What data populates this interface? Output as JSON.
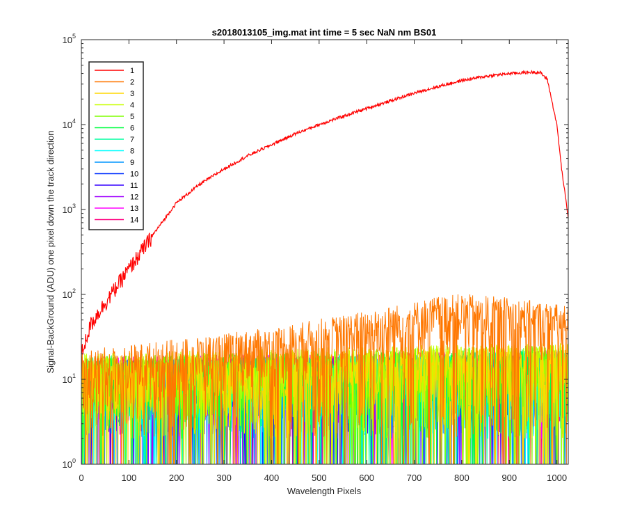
{
  "chart_data": {
    "type": "line",
    "title": "s2018013105_img.mat int time = 5 sec  NaN nm BS01",
    "xlabel": "Wavelength Pixels",
    "ylabel": "Signal-BackGround (ADU) one pixel down the track direction",
    "xlim": [
      0,
      1024
    ],
    "ylim": [
      1,
      100000
    ],
    "yscale": "log",
    "grid": false,
    "legend_position": "top-left",
    "x_ticks": [
      "0",
      "100",
      "200",
      "300",
      "400",
      "500",
      "600",
      "700",
      "800",
      "900",
      "1000"
    ],
    "x_tick_values": [
      0,
      100,
      200,
      300,
      400,
      500,
      600,
      700,
      800,
      900,
      1000
    ],
    "y_ticks": [
      {
        "base": "10",
        "exp": "0",
        "value": 1
      },
      {
        "base": "10",
        "exp": "1",
        "value": 10
      },
      {
        "base": "10",
        "exp": "2",
        "value": 100
      },
      {
        "base": "10",
        "exp": "3",
        "value": 1000
      },
      {
        "base": "10",
        "exp": "4",
        "value": 10000
      },
      {
        "base": "10",
        "exp": "5",
        "value": 100000
      }
    ],
    "series": [
      {
        "name": "1",
        "color": "#ff0000",
        "profile": "signal",
        "x": [
          0,
          10,
          20,
          30,
          50,
          100,
          150,
          200,
          250,
          300,
          350,
          400,
          450,
          500,
          550,
          600,
          650,
          700,
          750,
          800,
          850,
          900,
          950,
          965,
          980,
          1000,
          1010,
          1024
        ],
        "y": [
          20,
          30,
          45,
          55,
          80,
          200,
          500,
          1200,
          2000,
          3000,
          4300,
          5800,
          7800,
          10000,
          12500,
          15500,
          19000,
          23500,
          28000,
          33000,
          37000,
          40000,
          41500,
          41000,
          34000,
          10000,
          3000,
          800
        ]
      },
      {
        "name": "2",
        "color": "#ff7700",
        "profile": "noise",
        "x": [
          0,
          200,
          400,
          500,
          600,
          700,
          750,
          800,
          900,
          1000,
          1024
        ],
        "y": [
          12,
          16,
          22,
          28,
          35,
          45,
          52,
          55,
          50,
          42,
          40
        ]
      },
      {
        "name": "3",
        "color": "#ffd700",
        "profile": "noise",
        "x": [
          0,
          1024
        ],
        "y": [
          10,
          14
        ]
      },
      {
        "name": "4",
        "color": "#c8ff00",
        "profile": "noise",
        "x": [
          0,
          1024
        ],
        "y": [
          11,
          15
        ]
      },
      {
        "name": "5",
        "color": "#7fff00",
        "profile": "noise",
        "x": [
          0,
          1024
        ],
        "y": [
          10,
          14
        ]
      },
      {
        "name": "6",
        "color": "#00ff40",
        "profile": "noise",
        "x": [
          0,
          1024
        ],
        "y": [
          10,
          13
        ]
      },
      {
        "name": "7",
        "color": "#00ffa0",
        "profile": "noise",
        "x": [
          0,
          1024
        ],
        "y": [
          9,
          12
        ]
      },
      {
        "name": "8",
        "color": "#00ffff",
        "profile": "noise",
        "x": [
          0,
          1024
        ],
        "y": [
          9,
          12
        ]
      },
      {
        "name": "9",
        "color": "#0095ff",
        "profile": "noise",
        "x": [
          0,
          1024
        ],
        "y": [
          9,
          12
        ]
      },
      {
        "name": "10",
        "color": "#0030ff",
        "profile": "noise",
        "x": [
          0,
          1024
        ],
        "y": [
          9,
          11
        ]
      },
      {
        "name": "11",
        "color": "#3300ff",
        "profile": "noise",
        "x": [
          0,
          1024
        ],
        "y": [
          9,
          11
        ]
      },
      {
        "name": "12",
        "color": "#a000ff",
        "profile": "noise",
        "x": [
          0,
          1024
        ],
        "y": [
          9,
          11
        ]
      },
      {
        "name": "13",
        "color": "#ff00ff",
        "profile": "noise",
        "x": [
          0,
          1024
        ],
        "y": [
          10,
          12
        ]
      },
      {
        "name": "14",
        "color": "#ff0080",
        "profile": "noise",
        "x": [
          0,
          1024
        ],
        "y": [
          10,
          12
        ]
      }
    ]
  }
}
